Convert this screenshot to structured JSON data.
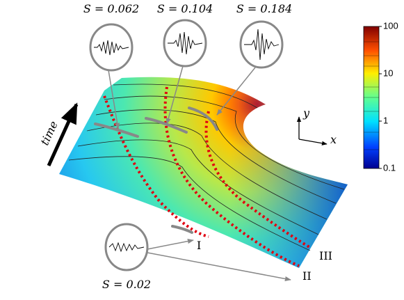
{
  "labels": {
    "s_values": [
      "S = 0.062",
      "S = 0.104",
      "S = 0.184",
      "S = 0.02"
    ],
    "time": "time",
    "axis_x": "x",
    "axis_y": "y",
    "regions": [
      "I",
      "II",
      "III"
    ]
  },
  "colorbar": {
    "lim": [
      0.1,
      100
    ],
    "ticks": [
      0.1,
      1,
      10,
      100
    ],
    "log": true
  }
}
